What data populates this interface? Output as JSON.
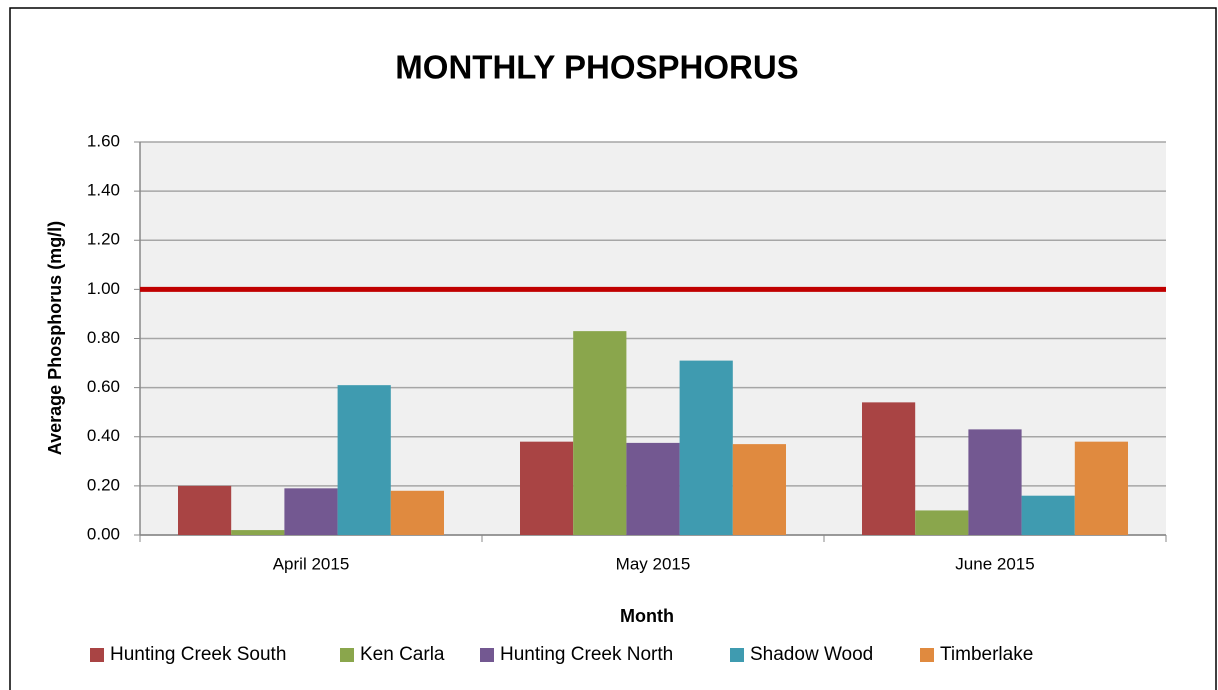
{
  "chart_data": {
    "type": "bar",
    "title": "MONTHLY PHOSPHORUS",
    "x_label": "Month",
    "y_label": "Average Phosphorus (mg/l)",
    "categories": [
      "April 2015",
      "May 2015",
      "June 2015"
    ],
    "series": [
      {
        "name": "Hunting Creek South",
        "color": "#a94444",
        "values": [
          0.2,
          0.38,
          0.54
        ]
      },
      {
        "name": "Ken Carla",
        "color": "#8aa64c",
        "values": [
          0.02,
          0.83,
          0.1
        ]
      },
      {
        "name": "Hunting Creek North",
        "color": "#735891",
        "values": [
          0.19,
          0.375,
          0.43
        ]
      },
      {
        "name": "Shadow Wood",
        "color": "#3f9bb0",
        "values": [
          0.61,
          0.71,
          0.16
        ]
      },
      {
        "name": "Timberlake",
        "color": "#e08a3f",
        "values": [
          0.18,
          0.37,
          0.38
        ]
      }
    ],
    "reference_line": {
      "value": 1.0,
      "color": "#c00000"
    },
    "ylim": [
      0,
      1.6
    ],
    "yticks": [
      {
        "value": 0,
        "label": "0.00"
      },
      {
        "value": 0.2,
        "label": "0.20"
      },
      {
        "value": 0.4,
        "label": "0.40"
      },
      {
        "value": 0.6,
        "label": "0.60"
      },
      {
        "value": 0.8,
        "label": "0.80"
      },
      {
        "value": 1.0,
        "label": "1.00"
      },
      {
        "value": 1.2,
        "label": "1.20"
      },
      {
        "value": 1.4,
        "label": "1.40"
      },
      {
        "value": 1.6,
        "label": "1.60"
      }
    ],
    "grid": true,
    "legend": "bottom"
  }
}
